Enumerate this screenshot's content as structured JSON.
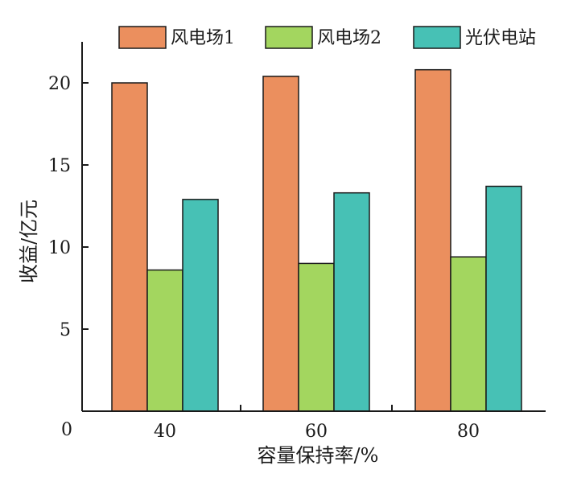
{
  "chart_data": {
    "type": "bar",
    "categories": [
      "40",
      "60",
      "80"
    ],
    "series": [
      {
        "name": "风电场1",
        "values": [
          20.0,
          20.4,
          20.8
        ],
        "color": "#EB8F5E"
      },
      {
        "name": "风电场2",
        "values": [
          8.6,
          9.0,
          9.4
        ],
        "color": "#A3D65F"
      },
      {
        "name": "光伏电站",
        "values": [
          12.9,
          13.3,
          13.7
        ],
        "color": "#47C1B5"
      }
    ],
    "xlabel": "容量保持率/%",
    "ylabel": "收益/亿元",
    "ylim": [
      0,
      22.5
    ],
    "yticks": [
      0,
      5,
      10,
      15,
      20
    ],
    "legend_position": "top",
    "grid": false
  }
}
